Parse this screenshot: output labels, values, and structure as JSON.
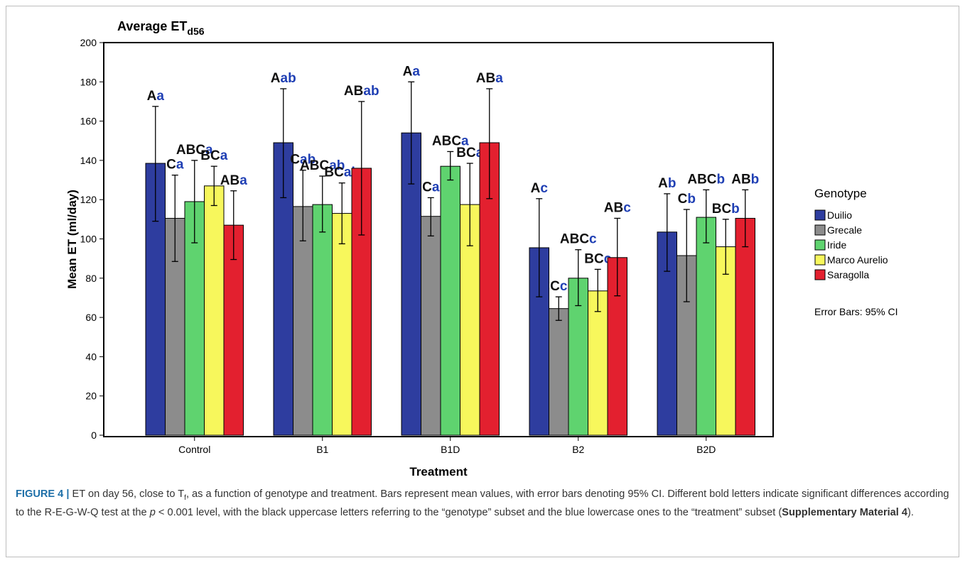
{
  "chart_data": {
    "type": "bar",
    "title": "Average ET",
    "title_subscript": "d56",
    "xlabel": "Treatment",
    "ylabel": "Mean ET (ml/day)",
    "ylim": [
      0,
      200
    ],
    "yticks": [
      "0",
      "20",
      "40",
      "60",
      "80",
      "100",
      "120",
      "140",
      "160",
      "180",
      "200"
    ],
    "categories": [
      "Control",
      "B1",
      "B1D",
      "B2",
      "B2D"
    ],
    "series": [
      {
        "name": "Duilio",
        "color": "#2e3d9f",
        "values": [
          138.5,
          149,
          154,
          95.5,
          103.5
        ],
        "ci_low": [
          109,
          121,
          128,
          70.5,
          83.5
        ],
        "ci_high": [
          167.5,
          176.5,
          180,
          120.5,
          123
        ]
      },
      {
        "name": "Grecale",
        "color": "#8c8c8c",
        "values": [
          110.5,
          116.5,
          111.5,
          64.5,
          91.5
        ],
        "ci_low": [
          88.5,
          99,
          101.5,
          58.5,
          68
        ],
        "ci_high": [
          132.5,
          135,
          121,
          70.5,
          115
        ]
      },
      {
        "name": "Iride",
        "color": "#5fd36f",
        "values": [
          119,
          117.5,
          137,
          80,
          111
        ],
        "ci_low": [
          98,
          103.5,
          130,
          66,
          98
        ],
        "ci_high": [
          140,
          132,
          144.5,
          94.5,
          125
        ]
      },
      {
        "name": "Marco Aurelio",
        "color": "#f7f75c",
        "values": [
          127,
          113,
          117.5,
          73.5,
          96
        ],
        "ci_low": [
          117,
          97.5,
          96.5,
          63,
          82
        ],
        "ci_high": [
          137,
          128.5,
          138.5,
          84.5,
          110
        ]
      },
      {
        "name": "Saragolla",
        "color": "#e3202f",
        "values": [
          107,
          136,
          149,
          90.5,
          110.5
        ],
        "ci_low": [
          89.5,
          102,
          120.5,
          71,
          96
        ],
        "ci_high": [
          124.5,
          170,
          176.5,
          110.5,
          125
        ]
      }
    ],
    "annotations": [
      [
        {
          "upper": "A",
          "lower": "a"
        },
        {
          "upper": "C",
          "lower": "a"
        },
        {
          "upper": "ABC",
          "lower": "a"
        },
        {
          "upper": "BC",
          "lower": "a"
        },
        {
          "upper": "AB",
          "lower": "a"
        }
      ],
      [
        {
          "upper": "A",
          "lower": "ab"
        },
        {
          "upper": "C",
          "lower": "ab"
        },
        {
          "upper": "ABC",
          "lower": "ab"
        },
        {
          "upper": "BC",
          "lower": "ab"
        },
        {
          "upper": "AB",
          "lower": "ab"
        }
      ],
      [
        {
          "upper": "A",
          "lower": "a"
        },
        {
          "upper": "C",
          "lower": "a"
        },
        {
          "upper": "ABC",
          "lower": "a"
        },
        {
          "upper": "BC",
          "lower": "a"
        },
        {
          "upper": "AB",
          "lower": "a"
        }
      ],
      [
        {
          "upper": "A",
          "lower": "c"
        },
        {
          "upper": "C",
          "lower": "c"
        },
        {
          "upper": "ABC",
          "lower": "c"
        },
        {
          "upper": "BC",
          "lower": "c"
        },
        {
          "upper": "AB",
          "lower": "c"
        }
      ],
      [
        {
          "upper": "A",
          "lower": "b"
        },
        {
          "upper": "C",
          "lower": "b"
        },
        {
          "upper": "ABC",
          "lower": "b"
        },
        {
          "upper": "BC",
          "lower": "b"
        },
        {
          "upper": "AB",
          "lower": "b"
        }
      ]
    ],
    "legend_title": "Genotype",
    "legend_position": "right",
    "error_bar_note": "Error Bars: 95% CI",
    "grid": false
  },
  "caption": {
    "label": "FIGURE 4 |",
    "text_before_sub": " ET on day 56, close to T",
    "sub": "f",
    "text_mid_1": ", as a function of genotype and treatment. Bars represent mean values, with error bars denoting 95% CI. Different bold letters indicate significant differences according to the R-E-G-W-Q test at the ",
    "p_symbol": "p",
    "text_mid_2": " < 0.001 level, with the black uppercase letters referring to the “genotype” subset and the blue lowercase ones to the “treatment” subset (",
    "link": "Supplementary Material 4",
    "text_end": ")."
  }
}
